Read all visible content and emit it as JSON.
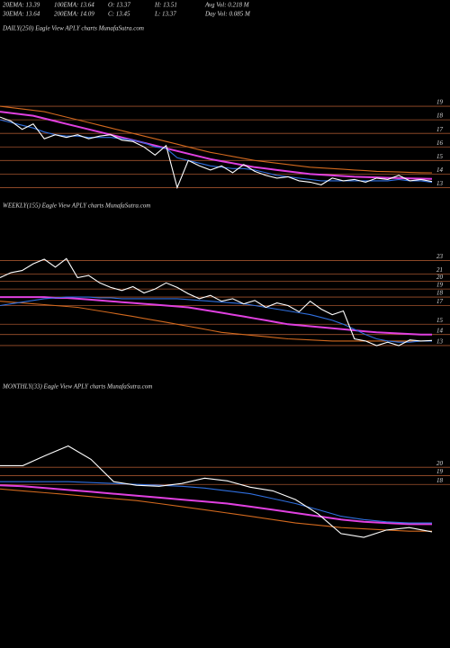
{
  "header": {
    "rows": [
      [
        "20EMA: 13.39",
        "100EMA: 13.64",
        "O: 13.37",
        "H: 13.51",
        "Avg Vol: 0.218 M"
      ],
      [
        "30EMA: 13.64",
        "200EMA: 14.09",
        "C: 13.45",
        "L: 13.37",
        "Day Vol: 0.085 M"
      ]
    ]
  },
  "chart_data": [
    {
      "type": "line",
      "title": "DAILY(250) Eagle  View  APLY charts MunafaSutra.com",
      "log": false,
      "ylim": [
        11.9,
        20.2
      ],
      "yticks": [
        13,
        14,
        15,
        16,
        17,
        18,
        19
      ],
      "grid": true,
      "series": [
        {
          "color": "#d2691e",
          "values": [
            19.0,
            18.9,
            18.8,
            18.7,
            18.6,
            18.4,
            18.2,
            18.0,
            17.8,
            17.6,
            17.4,
            17.2,
            17.0,
            16.8,
            16.6,
            16.4,
            16.2,
            16.0,
            15.8,
            15.6,
            15.45,
            15.3,
            15.15,
            15.0,
            14.9,
            14.8,
            14.7,
            14.6,
            14.5,
            14.45,
            14.4,
            14.35,
            14.3,
            14.25,
            14.2,
            14.18,
            14.15,
            14.12,
            14.1,
            14.09
          ]
        },
        {
          "color": "#e040e0",
          "values": [
            18.6,
            18.5,
            18.4,
            18.3,
            18.1,
            17.9,
            17.7,
            17.5,
            17.3,
            17.1,
            16.9,
            16.7,
            16.5,
            16.3,
            16.1,
            15.9,
            15.7,
            15.5,
            15.3,
            15.1,
            14.95,
            14.8,
            14.65,
            14.5,
            14.4,
            14.3,
            14.2,
            14.1,
            14.0,
            13.95,
            13.9,
            13.85,
            13.8,
            13.78,
            13.75,
            13.72,
            13.7,
            13.68,
            13.66,
            13.64
          ]
        },
        {
          "color": "#2f6fdf",
          "values": [
            18.0,
            17.8,
            17.6,
            17.4,
            17.1,
            16.9,
            16.8,
            16.8,
            16.7,
            16.7,
            16.7,
            16.6,
            16.5,
            16.3,
            16.0,
            15.9,
            15.2,
            15.0,
            14.8,
            14.6,
            14.5,
            14.4,
            14.4,
            14.3,
            14.1,
            13.9,
            13.8,
            13.7,
            13.6,
            13.5,
            13.5,
            13.5,
            13.5,
            13.5,
            13.5,
            13.5,
            13.6,
            13.5,
            13.5,
            13.39
          ]
        },
        {
          "color": "#ffffff",
          "values": [
            18.2,
            17.9,
            17.3,
            17.7,
            16.6,
            16.9,
            16.7,
            16.9,
            16.6,
            16.8,
            16.9,
            16.5,
            16.4,
            16.0,
            15.4,
            16.1,
            13.0,
            15.0,
            14.6,
            14.3,
            14.6,
            14.1,
            14.7,
            14.2,
            13.9,
            13.7,
            13.8,
            13.5,
            13.4,
            13.2,
            13.7,
            13.5,
            13.6,
            13.4,
            13.7,
            13.6,
            13.9,
            13.5,
            13.6,
            13.45
          ]
        }
      ]
    },
    {
      "type": "line",
      "title": "WEEKLY(155) Eagle  View  APLY charts MunafaSutra.com",
      "log": true,
      "ylim": [
        11.8,
        31
      ],
      "yticks": [
        13,
        14,
        15,
        17,
        18,
        19,
        20,
        21,
        23
      ],
      "grid": true,
      "series": [
        {
          "color": "#d2691e",
          "values": [
            17.5,
            17.4,
            17.3,
            17.2,
            17.1,
            17.0,
            16.9,
            16.8,
            16.6,
            16.4,
            16.2,
            16.0,
            15.8,
            15.6,
            15.4,
            15.2,
            15.0,
            14.8,
            14.6,
            14.4,
            14.2,
            14.1,
            14.0,
            13.9,
            13.8,
            13.7,
            13.6,
            13.55,
            13.5,
            13.45,
            13.4,
            13.4,
            13.4,
            13.4,
            13.4,
            13.4,
            13.4,
            13.4,
            13.4,
            13.4
          ]
        },
        {
          "color": "#e040e0",
          "values": [
            18.0,
            18.0,
            18.0,
            18.0,
            18.0,
            17.9,
            17.9,
            17.8,
            17.7,
            17.6,
            17.5,
            17.4,
            17.3,
            17.2,
            17.1,
            17.0,
            16.9,
            16.8,
            16.6,
            16.4,
            16.2,
            16.0,
            15.8,
            15.6,
            15.4,
            15.2,
            15.0,
            14.9,
            14.8,
            14.7,
            14.6,
            14.5,
            14.4,
            14.3,
            14.2,
            14.15,
            14.1,
            14.05,
            14.0,
            14.0
          ]
        },
        {
          "color": "#2f6fdf",
          "values": [
            17.0,
            17.2,
            17.4,
            17.6,
            17.8,
            17.9,
            18.0,
            18.0,
            18.0,
            17.9,
            17.9,
            17.8,
            17.8,
            17.8,
            17.8,
            17.8,
            17.8,
            17.7,
            17.6,
            17.5,
            17.4,
            17.3,
            17.2,
            17.0,
            16.8,
            16.6,
            16.4,
            16.2,
            16.0,
            15.7,
            15.4,
            15.0,
            14.5,
            14.0,
            13.6,
            13.4,
            13.3,
            13.3,
            13.4,
            13.4
          ]
        },
        {
          "color": "#ffffff",
          "values": [
            20.5,
            21.2,
            21.5,
            22.5,
            23.2,
            22.0,
            23.3,
            20.5,
            20.8,
            19.8,
            19.2,
            18.8,
            19.3,
            18.5,
            19.0,
            19.8,
            19.2,
            18.4,
            17.8,
            18.2,
            17.5,
            17.8,
            17.2,
            17.6,
            16.8,
            17.3,
            17.0,
            16.3,
            17.5,
            16.6,
            16.0,
            16.4,
            13.6,
            13.4,
            13.0,
            13.3,
            13.0,
            13.5,
            13.4,
            13.45
          ]
        }
      ]
    },
    {
      "type": "line",
      "title": "MONTHLY(33) Eagle  View  APLY charts MunafaSutra.com",
      "log": true,
      "ylim": [
        12.1,
        31
      ],
      "yticks": [
        18,
        19,
        20
      ],
      "grid": true,
      "series": [
        {
          "color": "#d2691e",
          "values": [
            17.5,
            17.3,
            17.1,
            16.9,
            16.7,
            16.5,
            16.3,
            16.0,
            15.7,
            15.4,
            15.1,
            14.8,
            14.5,
            14.2,
            14.0,
            13.8,
            13.7,
            13.6,
            13.5,
            13.5
          ]
        },
        {
          "color": "#e040e0",
          "values": [
            17.9,
            17.8,
            17.6,
            17.4,
            17.2,
            17.0,
            16.8,
            16.6,
            16.4,
            16.2,
            16.0,
            15.7,
            15.4,
            15.1,
            14.8,
            14.5,
            14.3,
            14.2,
            14.1,
            14.1
          ]
        },
        {
          "color": "#2f6fdf",
          "values": [
            18.3,
            18.3,
            18.3,
            18.3,
            18.2,
            18.1,
            18.0,
            17.9,
            17.8,
            17.6,
            17.3,
            17.0,
            16.5,
            16.0,
            15.4,
            14.8,
            14.5,
            14.3,
            14.2,
            14.2
          ]
        },
        {
          "color": "#ffffff",
          "values": [
            20.2,
            20.2,
            21.5,
            22.8,
            21.0,
            18.3,
            17.9,
            17.8,
            18.1,
            18.7,
            18.4,
            17.7,
            17.3,
            16.4,
            15.0,
            13.3,
            13.0,
            13.6,
            13.8,
            13.45
          ]
        }
      ]
    }
  ]
}
